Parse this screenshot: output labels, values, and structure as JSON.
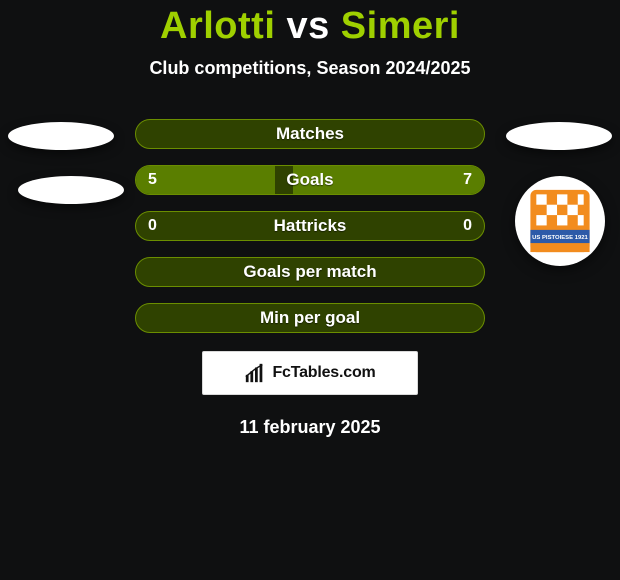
{
  "title": {
    "player1": "Arlotti",
    "vs": "vs",
    "player2": "Simeri",
    "player1_color": "#9fd000",
    "vs_color": "#ffffff",
    "player2_color": "#9fd000"
  },
  "subtitle": "Club competitions, Season 2024/2025",
  "rows": [
    {
      "label": "Matches",
      "left": "",
      "right": "",
      "left_pct": 0,
      "right_pct": 0
    },
    {
      "label": "Goals",
      "left": "5",
      "right": "7",
      "left_pct": 40,
      "right_pct": 55
    },
    {
      "label": "Hattricks",
      "left": "0",
      "right": "0",
      "left_pct": 0,
      "right_pct": 0
    },
    {
      "label": "Goals per match",
      "left": "",
      "right": "",
      "left_pct": 0,
      "right_pct": 0
    },
    {
      "label": "Min per goal",
      "left": "",
      "right": "",
      "left_pct": 0,
      "right_pct": 0
    }
  ],
  "bar": {
    "bg_color": "#2f4200",
    "border_color": "#6b8e00",
    "fill_color": "#5a7e00"
  },
  "crest": {
    "name": "us-pistoiese-crest",
    "primary_color": "#f28c1e",
    "secondary_color": "#ffffff",
    "band_color": "#2d5aa8",
    "band_text": "US PISTOIESE 1921"
  },
  "brand": "FcTables.com",
  "date": "11 february 2025",
  "background_color": "#0f1011"
}
